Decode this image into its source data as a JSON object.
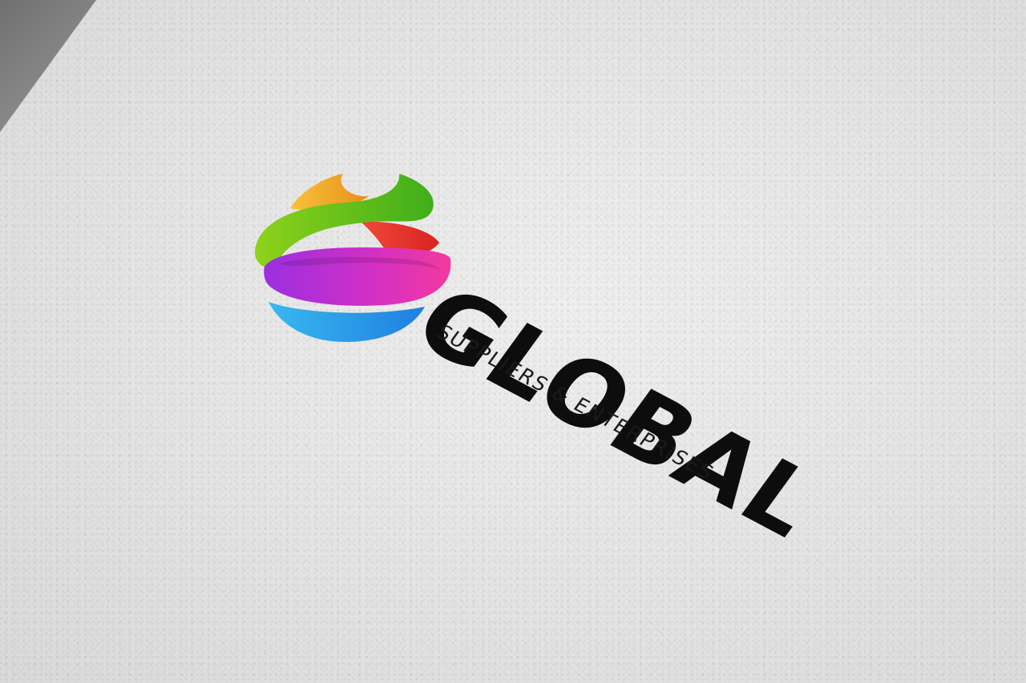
{
  "logo": {
    "name": "GLOBAL",
    "tagline": "SUPPLIERS & ENTERPRISES",
    "colors": {
      "orange": "#f2a81d",
      "green": "#6cc419",
      "red": "#e8342a",
      "purple": "#a22fd9",
      "magenta": "#ee2fa3",
      "blue": "#2aa3e8",
      "text": "#0d0d0d",
      "paper": "#e6e6e6"
    }
  }
}
